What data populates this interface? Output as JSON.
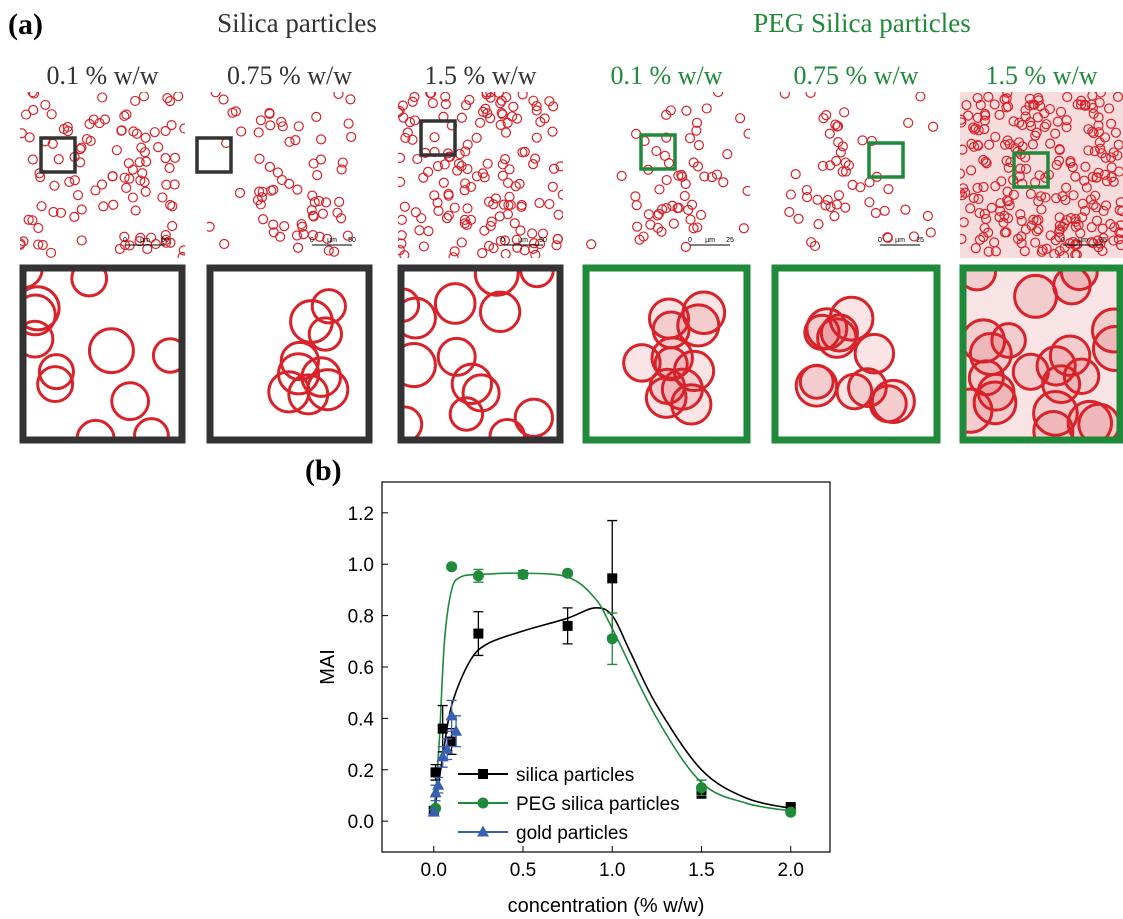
{
  "panel_a": {
    "label": "(a)",
    "groups": [
      {
        "title": "Silica particles",
        "color": "#333333",
        "images": [
          {
            "label": "0.1 % w/w",
            "scale": [
              "0",
              "µm",
              "50"
            ]
          },
          {
            "label": "0.75 % w/w",
            "scale": [
              "0",
              "µm",
              "50"
            ]
          },
          {
            "label": "1.5 % w/w",
            "scale": [
              "0",
              "µm",
              "50"
            ]
          }
        ]
      },
      {
        "title": "PEG Silica particles",
        "color": "#1e8a3a",
        "images": [
          {
            "label": "0.1 % w/w",
            "scale": [
              "0",
              "µm",
              "25"
            ]
          },
          {
            "label": "0.75 % w/w",
            "scale": [
              "0",
              "µm",
              "25"
            ]
          },
          {
            "label": "1.5 % w/w",
            "scale": [
              "0",
              "µm",
              "25"
            ]
          }
        ]
      }
    ]
  },
  "chart_data": {
    "type": "scatter",
    "panel_label": "(b)",
    "x_label": "concentration (% w/w)",
    "y_label": "MAI",
    "xlim": [
      -0.29,
      2.22
    ],
    "ylim": [
      -0.12,
      1.32
    ],
    "xticks": [
      {
        "value": 0,
        "label": "0.0"
      },
      {
        "value": 0.5,
        "label": "0.5"
      },
      {
        "value": 1,
        "label": "1.0"
      },
      {
        "value": 1.5,
        "label": "1.5"
      },
      {
        "value": 2,
        "label": "2.0"
      }
    ],
    "yticks": [
      {
        "value": 0,
        "label": "0.0"
      },
      {
        "value": 0.2,
        "label": "0.2"
      },
      {
        "value": 0.4,
        "label": "0.4"
      },
      {
        "value": 0.6,
        "label": "0.6"
      },
      {
        "value": 0.8,
        "label": "0.8"
      },
      {
        "value": 1,
        "label": "1.0"
      },
      {
        "value": 1.2,
        "label": "1.2"
      }
    ],
    "legend": "lower center",
    "series": [
      {
        "name": "silica particles",
        "color": "#000000",
        "marker": "square",
        "x": [
          0,
          0.01,
          0.05,
          0.1,
          0.25,
          0.75,
          1.0,
          1.5,
          2.0
        ],
        "values": [
          0.04,
          0.19,
          0.36,
          0.31,
          0.73,
          0.76,
          0.945,
          0.11,
          0.055
        ],
        "errors": [
          0.01,
          0.03,
          0.09,
          0.05,
          0.085,
          0.07,
          0.225,
          0.02,
          0.01
        ]
      },
      {
        "name": "PEG silica particles",
        "color": "#1e8a3a",
        "marker": "circle",
        "x": [
          0.01,
          0.1,
          0.25,
          0.5,
          0.75,
          1.0,
          1.5,
          2.0
        ],
        "values": [
          0.05,
          0.99,
          0.955,
          0.96,
          0.965,
          0.71,
          0.13,
          0.035
        ],
        "errors": [
          0.01,
          0.01,
          0.025,
          0.015,
          0.01,
          0.1,
          0.03,
          0.01
        ]
      },
      {
        "name": "gold particles",
        "color": "#3a5fb0",
        "marker": "triangle",
        "x": [
          0,
          0.01,
          0.025,
          0.05,
          0.075,
          0.1,
          0.125
        ],
        "values": [
          0.035,
          0.11,
          0.14,
          0.25,
          0.28,
          0.41,
          0.35
        ],
        "errors": [
          0.01,
          0.03,
          0.03,
          0.04,
          0.04,
          0.06,
          0.06
        ]
      }
    ],
    "fits": [
      {
        "color": "#000000",
        "x": [
          0,
          0.05,
          0.1,
          0.2,
          0.3,
          0.5,
          0.75,
          0.9,
          1.0,
          1.1,
          1.25,
          1.5,
          1.75,
          2.0
        ],
        "values": [
          0.02,
          0.25,
          0.45,
          0.62,
          0.69,
          0.74,
          0.79,
          0.83,
          0.8,
          0.66,
          0.45,
          0.2,
          0.09,
          0.05
        ]
      },
      {
        "color": "#1e8a3a",
        "x": [
          0,
          0.03,
          0.06,
          0.1,
          0.15,
          0.25,
          0.5,
          0.75,
          0.9,
          1.0,
          1.25,
          1.5,
          1.75,
          2.0
        ],
        "values": [
          0.02,
          0.3,
          0.7,
          0.9,
          0.95,
          0.96,
          0.965,
          0.95,
          0.87,
          0.75,
          0.4,
          0.15,
          0.07,
          0.04
        ]
      }
    ]
  }
}
